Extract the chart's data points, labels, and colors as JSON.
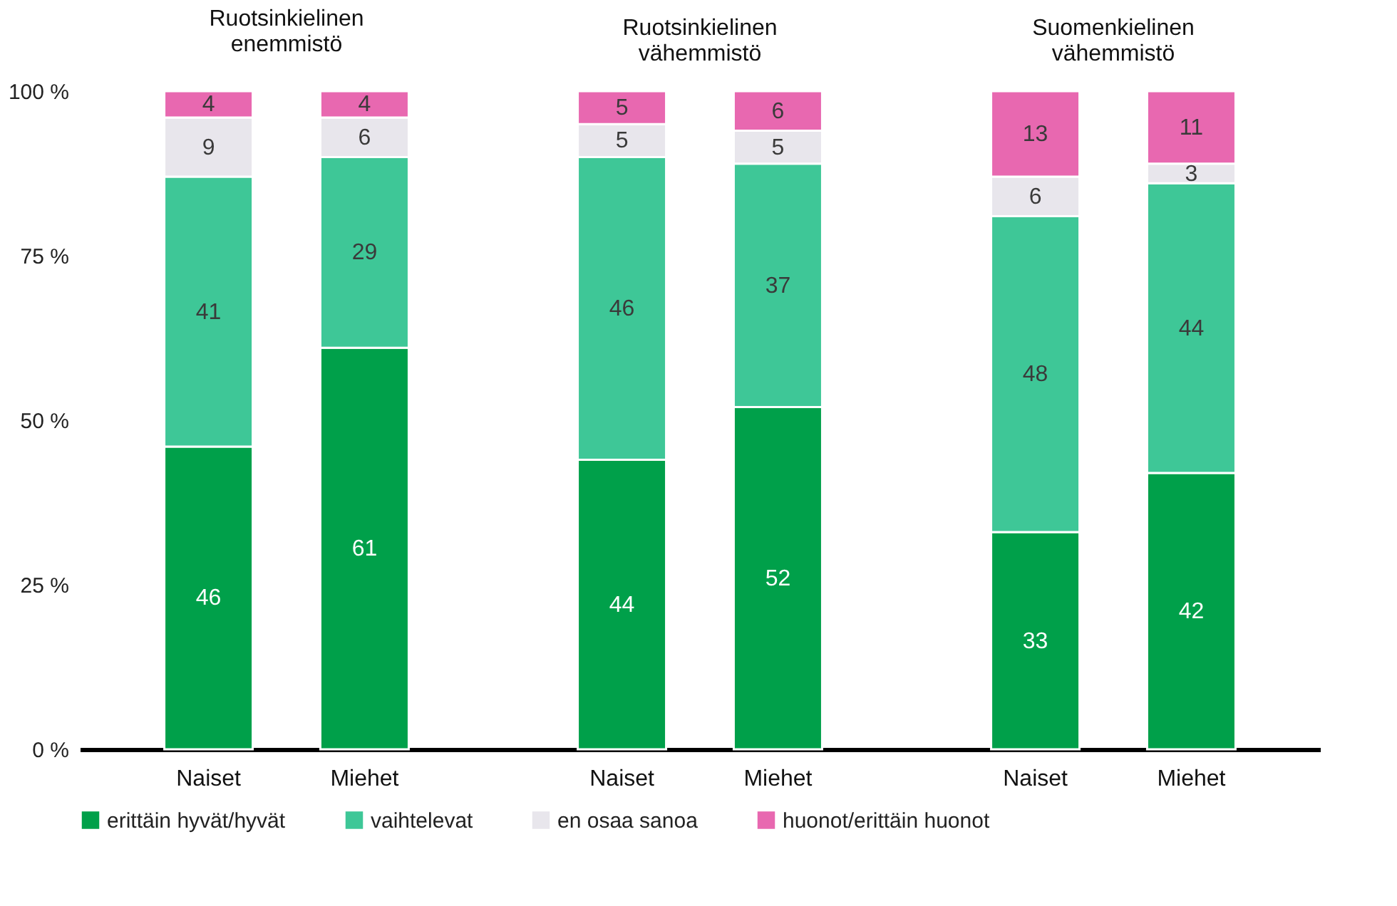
{
  "chart_data": [
    {
      "type": "bar",
      "title": "Ruotsinkielinen\nenemmistö",
      "categories": [
        "Naiset",
        "Miehet"
      ],
      "stacked": true,
      "data_labels": true,
      "ylim": [
        0,
        100
      ],
      "yticks": [
        {
          "value": 0,
          "label": "0 %"
        },
        {
          "value": 25,
          "label": "25 %"
        },
        {
          "value": 50,
          "label": "50 %"
        },
        {
          "value": 75,
          "label": "75 %"
        },
        {
          "value": 100,
          "label": "100 %"
        }
      ],
      "grid": false,
      "legend": "bottom",
      "series": [
        {
          "name": "erittäin hyvät/hyvät",
          "color": "#00a04a",
          "values": [
            46,
            61
          ]
        },
        {
          "name": "vaihtelevat",
          "color": "#3ec797",
          "values": [
            41,
            29
          ]
        },
        {
          "name": "en osaa sanoa",
          "color": "#e8e6ec",
          "values": [
            9,
            6
          ]
        },
        {
          "name": "huonot/erittäin huonot",
          "color": "#e868b0",
          "values": [
            4,
            4
          ]
        }
      ]
    },
    {
      "type": "bar",
      "title": "Ruotsinkielinen\nvähemmistö",
      "categories": [
        "Naiset",
        "Miehet"
      ],
      "stacked": true,
      "data_labels": true,
      "ylim": [
        0,
        100
      ],
      "tick_labels": "x",
      "grid": false,
      "series": [
        {
          "name": "erittäin hyvät/hyvät",
          "color": "#00a04a",
          "values": [
            44,
            52
          ]
        },
        {
          "name": "vaihtelevat",
          "color": "#3ec797",
          "values": [
            46,
            37
          ]
        },
        {
          "name": "en osaa sanoa",
          "color": "#e8e6ec",
          "values": [
            5,
            5
          ]
        },
        {
          "name": "huonot/erittäin huonot",
          "color": "#e868b0",
          "values": [
            5,
            6
          ]
        }
      ]
    },
    {
      "type": "bar",
      "title": "Suomenkielinen\nvähemmistö",
      "categories": [
        "Naiset",
        "Miehet"
      ],
      "stacked": true,
      "data_labels": true,
      "ylim": [
        0,
        100
      ],
      "tick_labels": "x",
      "grid": false,
      "series": [
        {
          "name": "erittäin hyvät/hyvät",
          "color": "#00a04a",
          "values": [
            33,
            42
          ]
        },
        {
          "name": "vaihtelevat",
          "color": "#3ec797",
          "values": [
            48,
            44
          ]
        },
        {
          "name": "en osaa sanoa",
          "color": "#e8e6ec",
          "values": [
            6,
            3
          ]
        },
        {
          "name": "huonot/erittäin huonot",
          "color": "#e868b0",
          "values": [
            13,
            11
          ]
        }
      ]
    }
  ]
}
